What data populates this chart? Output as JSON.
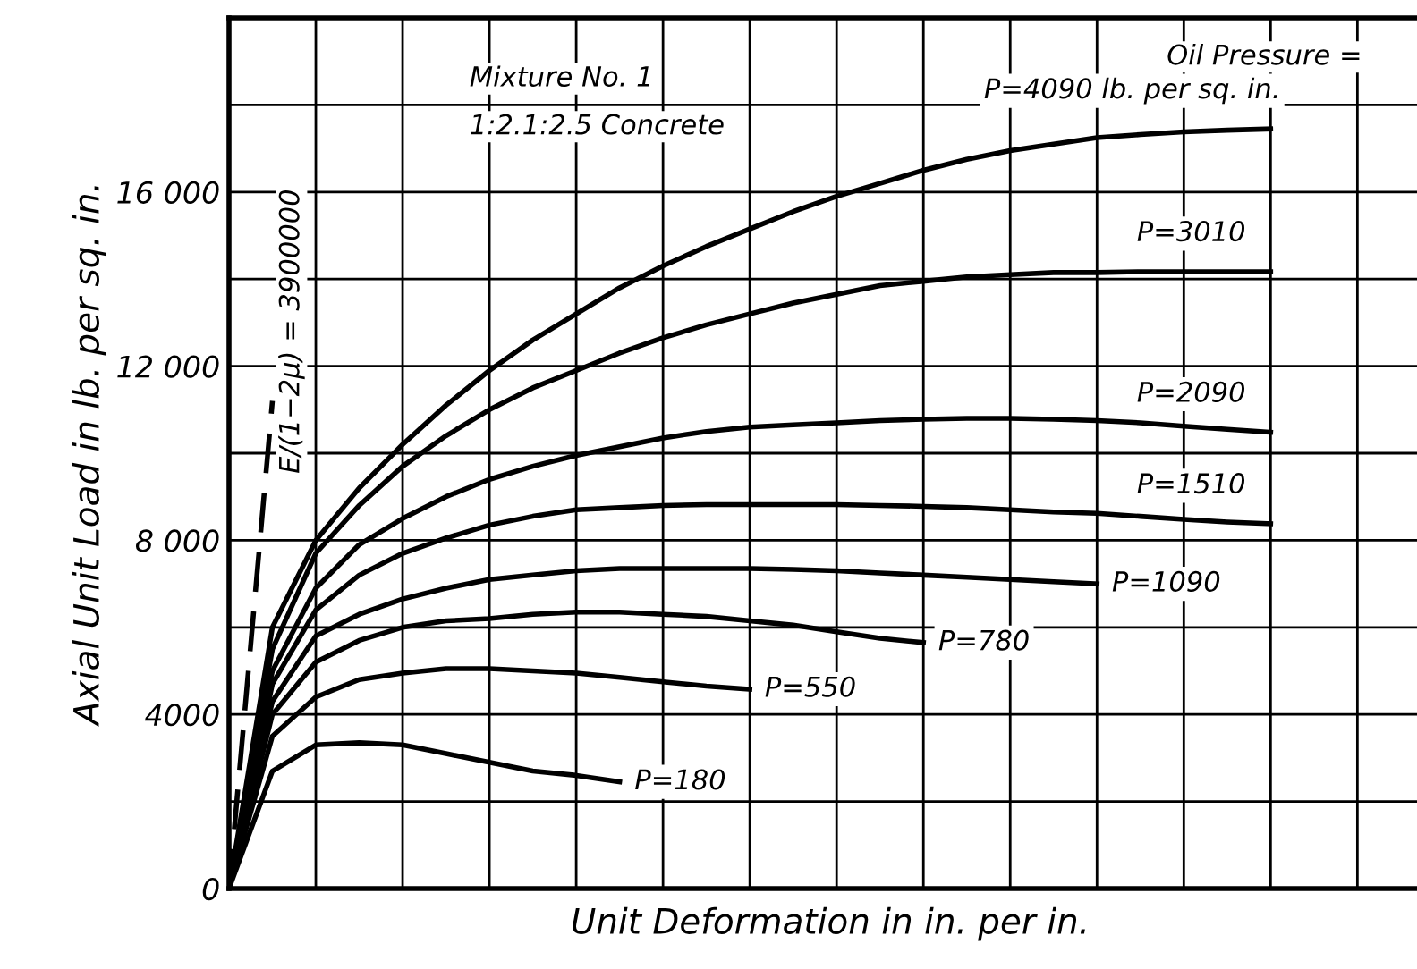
{
  "chart_data": {
    "type": "line",
    "xlabel": "Unit Deformation in in. per in.",
    "ylabel": "Axial Unit Load in lb. per sq. in.",
    "annotations": [
      "Mixture No. 1",
      "1:2.1:2.5 Concrete",
      "Oil Pressure =",
      "E/(1−2μ) = 3900000"
    ],
    "categories": [
      null,
      null,
      null,
      null,
      null,
      null,
      null,
      null,
      null,
      null,
      null,
      null,
      null,
      null,
      null,
      null,
      null,
      null,
      null,
      null,
      null,
      null,
      null,
      null,
      null,
      null,
      null,
      null
    ],
    "series": [
      {
        "name": "P=4090 lb. per sq. in.",
        "color": "#000000",
        "values": [
          0,
          6000,
          8000,
          9200,
          10200,
          11100,
          11900,
          12600,
          13200,
          13800,
          14300,
          14750,
          15150,
          15550,
          15900,
          16200,
          16500,
          16750,
          16950,
          17100,
          17250,
          17320,
          17380,
          17420,
          17450,
          null,
          null,
          null
        ]
      },
      {
        "name": "P=3010",
        "color": "#000000",
        "values": [
          0,
          5500,
          7700,
          8800,
          9700,
          10400,
          11000,
          11500,
          11900,
          12300,
          12650,
          12950,
          13200,
          13450,
          13650,
          13850,
          13950,
          14050,
          14100,
          14150,
          14150,
          14170,
          14170,
          14170,
          14170,
          null,
          null,
          null
        ]
      },
      {
        "name": "P=2090",
        "color": "#000000",
        "values": [
          0,
          5000,
          6900,
          7900,
          8500,
          9000,
          9400,
          9700,
          9950,
          10150,
          10350,
          10500,
          10600,
          10650,
          10700,
          10750,
          10780,
          10800,
          10800,
          10780,
          10750,
          10700,
          10620,
          10550,
          10480,
          null,
          null,
          null
        ]
      },
      {
        "name": "P=1510",
        "color": "#000000",
        "values": [
          0,
          4700,
          6400,
          7200,
          7700,
          8050,
          8350,
          8550,
          8700,
          8750,
          8800,
          8820,
          8820,
          8820,
          8820,
          8800,
          8780,
          8750,
          8700,
          8650,
          8620,
          8550,
          8480,
          8420,
          8380,
          null,
          null,
          null
        ]
      },
      {
        "name": "P=1090",
        "color": "#000000",
        "values": [
          0,
          4300,
          5800,
          6300,
          6650,
          6900,
          7100,
          7200,
          7300,
          7350,
          7350,
          7350,
          7350,
          7330,
          7300,
          7250,
          7200,
          7150,
          7100,
          7050,
          7000,
          null,
          null,
          null,
          null,
          null,
          null,
          null
        ]
      },
      {
        "name": "P=780",
        "color": "#000000",
        "values": [
          0,
          4000,
          5200,
          5700,
          6000,
          6150,
          6200,
          6300,
          6350,
          6350,
          6300,
          6250,
          6150,
          6050,
          5900,
          5750,
          5650,
          null,
          null,
          null,
          null,
          null,
          null,
          null,
          null,
          null,
          null,
          null
        ]
      },
      {
        "name": "P=550",
        "color": "#000000",
        "values": [
          0,
          3500,
          4400,
          4800,
          4950,
          5050,
          5050,
          5000,
          4950,
          4850,
          4750,
          4650,
          4580,
          null,
          null,
          null,
          null,
          null,
          null,
          null,
          null,
          null,
          null,
          null,
          null,
          null,
          null,
          null
        ]
      },
      {
        "name": "P=180",
        "color": "#000000",
        "values": [
          0,
          2700,
          3300,
          3350,
          3300,
          3100,
          2900,
          2700,
          2600,
          2450,
          null,
          null,
          null,
          null,
          null,
          null,
          null,
          null,
          null,
          null,
          null,
          null,
          null,
          null,
          null,
          null,
          null,
          null
        ]
      },
      {
        "color": "#000000",
        "line_style": "dashed",
        "values": [
          0,
          11200,
          null,
          null,
          null,
          null,
          null,
          null,
          null,
          null,
          null,
          null,
          null,
          null,
          null,
          null,
          null,
          null,
          null,
          null,
          null,
          null,
          null,
          null,
          null,
          null,
          null,
          null
        ]
      }
    ],
    "ylim": [
      0,
      20000
    ],
    "yticks": [
      0,
      {
        "value": 2000,
        "label": null
      },
      4000,
      {
        "value": 6000,
        "label": null
      },
      {
        "value": 8000,
        "label": "8 000"
      },
      {
        "value": 10000,
        "label": null
      },
      {
        "value": 12000,
        "label": "12 000"
      },
      {
        "value": 14000,
        "label": null
      },
      {
        "value": 16000,
        "label": "16 000"
      },
      {
        "value": 18000,
        "label": null
      }
    ],
    "grid": true,
    "legend": false,
    "marker": "none",
    "line_style": "solid"
  }
}
